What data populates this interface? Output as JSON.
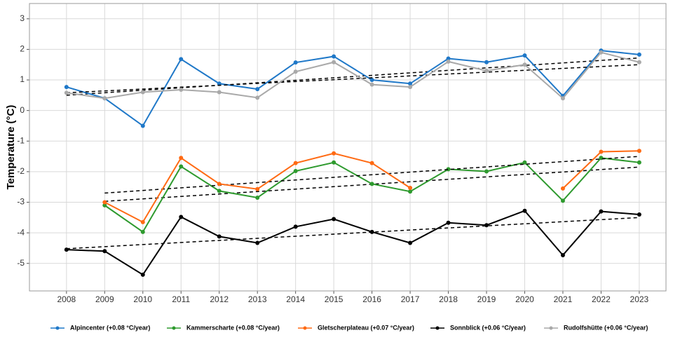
{
  "chart_data": {
    "type": "line",
    "y_label": "Temperature (°C)",
    "x": [
      2008,
      2009,
      2010,
      2011,
      2012,
      2013,
      2014,
      2015,
      2016,
      2017,
      2018,
      2019,
      2020,
      2021,
      2022,
      2023
    ],
    "xlim": [
      2007.03,
      2023.7
    ],
    "xticks": [
      2008,
      2009,
      2010,
      2011,
      2012,
      2013,
      2014,
      2015,
      2016,
      2017,
      2018,
      2019,
      2020,
      2021,
      2022,
      2023
    ],
    "ylim": [
      -5.9,
      3.5
    ],
    "yticks": [
      -5,
      -4,
      -3,
      -2,
      -1,
      0,
      1,
      2,
      3
    ],
    "grid": true,
    "legend": "bottom",
    "series": [
      {
        "name": "Alpincenter (+0.08 °C/year)",
        "color": "#1f78c8",
        "values": [
          0.77,
          0.4,
          -0.5,
          1.68,
          0.88,
          0.7,
          1.57,
          1.77,
          1.0,
          0.88,
          1.7,
          1.58,
          1.8,
          0.48,
          1.96,
          1.83
        ],
        "trend": [
          0.5,
          1.72
        ]
      },
      {
        "name": "Kammerscharte (+0.08 °C/year)",
        "color": "#2e9a2e",
        "values": [
          null,
          -3.1,
          -3.97,
          -1.83,
          -2.63,
          -2.85,
          -1.98,
          -1.7,
          -2.4,
          -2.65,
          -1.92,
          -1.99,
          -1.7,
          -2.95,
          -1.55,
          -1.7
        ],
        "trend": [
          -2.97,
          -1.85
        ]
      },
      {
        "name": "Gletscherplateau (+0.07 °C/year)",
        "color": "#ff6a13",
        "values": [
          null,
          -3.0,
          -3.65,
          -1.55,
          -2.4,
          -2.57,
          -1.72,
          -1.4,
          -1.72,
          -2.53,
          null,
          null,
          null,
          -2.55,
          -1.35,
          -1.32
        ],
        "trend": [
          -2.7,
          -1.5
        ]
      },
      {
        "name": "Sonnblick (+0.06 °C/year)",
        "color": "#000000",
        "values": [
          -4.55,
          -4.6,
          -5.37,
          -3.48,
          -4.12,
          -4.33,
          -3.8,
          -3.55,
          -3.97,
          -4.33,
          -3.67,
          -3.75,
          -3.28,
          -4.73,
          -3.3,
          -3.4
        ],
        "trend": [
          -4.52,
          -3.5
        ]
      },
      {
        "name": "Rudolfshütte (+0.06 °C/year)",
        "color": "#a9a9a9",
        "values": [
          0.58,
          0.4,
          0.6,
          0.68,
          0.6,
          0.42,
          1.27,
          1.58,
          0.85,
          0.77,
          1.6,
          1.3,
          1.5,
          0.4,
          1.9,
          1.58
        ],
        "trend": [
          0.58,
          1.5
        ]
      }
    ]
  }
}
